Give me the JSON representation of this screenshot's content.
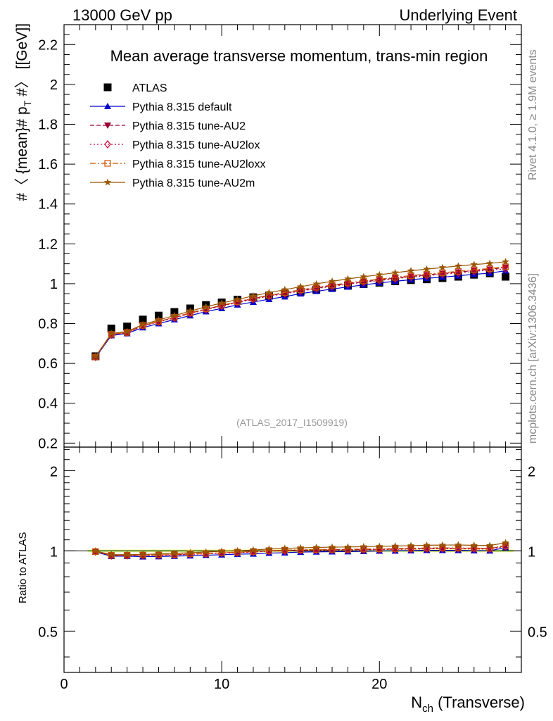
{
  "header": {
    "left": "13000 GeV pp",
    "right": "Underlying Event"
  },
  "side_text": {
    "top": "Rivet 4.1.0, ≥ 1.9M events",
    "bottom": "mcplots.cern.ch [arXiv:1306.3436]"
  },
  "chart_data": {
    "type": "scatter",
    "title": "Mean average transverse momentum, trans-min region",
    "watermark": "(ATLAS_2017_I1509919)",
    "xlabel": "N_ch (Transverse)",
    "xlabel_main": "N",
    "xlabel_sub": "ch",
    "xlabel_rest": " (Transverse)",
    "ylabel": "#〈 {mean}# p_T #〉 [[GeV]]",
    "ylabel_main": "#〈 {mean}# p",
    "ylabel_sub": "T",
    "ylabel_rest": " #〉 [[GeV]]",
    "ratio_ylabel": "Ratio to ATLAS",
    "xlim": [
      0,
      29
    ],
    "ylim": [
      0.18,
      2.3
    ],
    "ratio_ylim": [
      0.35,
      2.45
    ],
    "x_ticks": [
      0,
      10,
      20
    ],
    "x_tick_labels": [
      "0",
      "10",
      "20"
    ],
    "y_ticks": [
      0.2,
      0.4,
      0.6,
      0.8,
      1,
      1.2,
      1.4,
      1.6,
      1.8,
      2,
      2.2
    ],
    "y_tick_labels": [
      "0.2",
      "0.4",
      "0.6",
      "0.8",
      "1",
      "1.2",
      "1.4",
      "1.6",
      "1.8",
      "2",
      "2.2"
    ],
    "ratio_ticks": [
      0.5,
      1,
      2
    ],
    "ratio_tick_labels": [
      "0.5",
      "1",
      "2"
    ],
    "legend_position": "top-left",
    "x": [
      2,
      3,
      4,
      5,
      6,
      7,
      8,
      9,
      10,
      11,
      12,
      13,
      14,
      15,
      16,
      17,
      18,
      19,
      20,
      21,
      22,
      23,
      24,
      25,
      26,
      27,
      28
    ],
    "series": [
      {
        "name": "ATLAS",
        "color": "#000000",
        "marker": "square",
        "dash": "",
        "values": [
          0.636,
          0.775,
          0.785,
          0.82,
          0.84,
          0.858,
          0.876,
          0.893,
          0.906,
          0.92,
          0.932,
          0.94,
          0.95,
          0.96,
          0.97,
          0.98,
          0.99,
          0.998,
          1.005,
          1.012,
          1.018,
          1.022,
          1.028,
          1.035,
          1.045,
          1.052,
          1.035
        ]
      },
      {
        "name": "Pythia 8.315 default",
        "color": "#0000cc",
        "marker": "triangle-up",
        "dash": "",
        "values": [
          0.63,
          0.74,
          0.75,
          0.78,
          0.8,
          0.82,
          0.84,
          0.86,
          0.876,
          0.894,
          0.908,
          0.922,
          0.935,
          0.95,
          0.962,
          0.973,
          0.984,
          0.994,
          1.004,
          1.012,
          1.02,
          1.027,
          1.033,
          1.04,
          1.047,
          1.053,
          1.065
        ]
      },
      {
        "name": "Pythia 8.315 tune-AU2",
        "color": "#990033",
        "marker": "triangle-down",
        "dash": "6,3",
        "values": [
          0.632,
          0.745,
          0.755,
          0.79,
          0.81,
          0.83,
          0.852,
          0.872,
          0.89,
          0.908,
          0.925,
          0.94,
          0.953,
          0.966,
          0.978,
          0.99,
          1.0,
          1.01,
          1.019,
          1.028,
          1.037,
          1.044,
          1.051,
          1.058,
          1.066,
          1.072,
          1.082
        ]
      },
      {
        "name": "Pythia 8.315 tune-AU2lox",
        "color": "#cc0033",
        "marker": "diamond",
        "dash": "2,3",
        "values": [
          0.632,
          0.744,
          0.754,
          0.788,
          0.808,
          0.828,
          0.85,
          0.87,
          0.888,
          0.905,
          0.922,
          0.937,
          0.95,
          0.963,
          0.975,
          0.987,
          0.997,
          1.007,
          1.016,
          1.025,
          1.033,
          1.04,
          1.047,
          1.054,
          1.062,
          1.068,
          1.075
        ]
      },
      {
        "name": "Pythia 8.315 tune-AU2loxx",
        "color": "#cc5500",
        "marker": "square-open",
        "dash": "8,3,2,3",
        "values": [
          0.632,
          0.746,
          0.756,
          0.791,
          0.811,
          0.832,
          0.854,
          0.874,
          0.892,
          0.91,
          0.927,
          0.942,
          0.956,
          0.969,
          0.982,
          0.993,
          1.004,
          1.014,
          1.023,
          1.032,
          1.041,
          1.048,
          1.055,
          1.062,
          1.07,
          1.076,
          1.085
        ]
      },
      {
        "name": "Pythia 8.315 tune-AU2m",
        "color": "#995500",
        "marker": "star",
        "dash": "",
        "values": [
          0.635,
          0.75,
          0.76,
          0.795,
          0.818,
          0.84,
          0.862,
          0.884,
          0.903,
          0.921,
          0.939,
          0.955,
          0.97,
          0.985,
          0.999,
          1.012,
          1.024,
          1.035,
          1.045,
          1.055,
          1.065,
          1.073,
          1.081,
          1.089,
          1.096,
          1.102,
          1.11
        ]
      }
    ]
  }
}
